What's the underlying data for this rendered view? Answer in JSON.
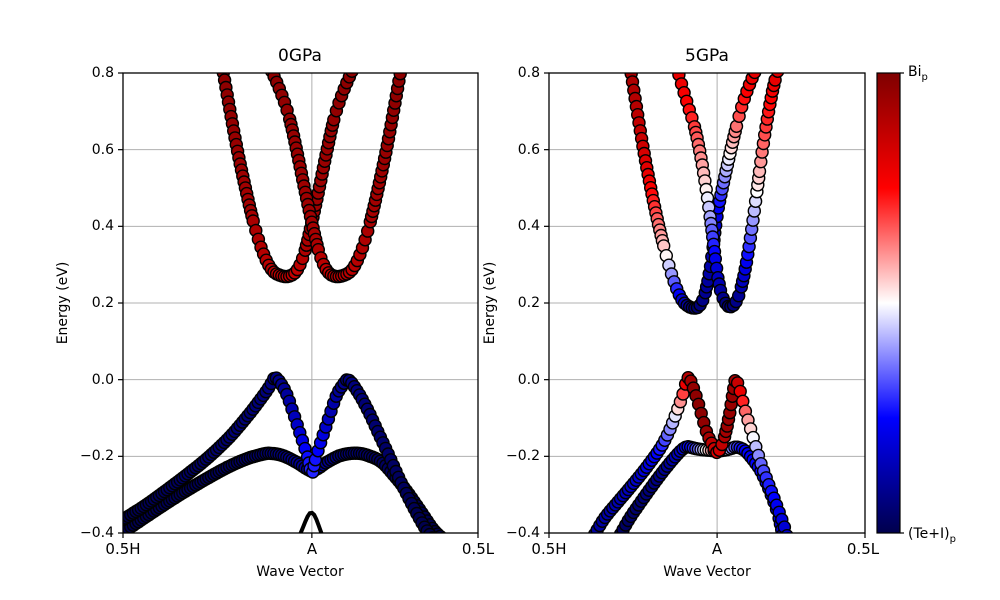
{
  "figure": {
    "background": "#ffffff"
  },
  "chart_data": {
    "type": "scatter",
    "title_left": "0GPa",
    "title_right": "5GPa",
    "colormap": {
      "name": "seismic",
      "range": [
        -1,
        1
      ],
      "stops_bottom_to_top": [
        "#00004d",
        "#0000ff",
        "#ffffff",
        "#ff0000",
        "#7f0000"
      ]
    },
    "grid": {
      "on": true,
      "color": "#b0b0b0"
    },
    "energy_axis": {
      "label": "Energy (eV)",
      "min": -0.4,
      "max": 0.8,
      "ticks": [
        0.8,
        0.6,
        0.4,
        0.2,
        0.0,
        -0.2,
        -0.4
      ],
      "tick_labels": [
        "0.8",
        "0.6",
        "0.4",
        "0.2",
        "0.0",
        "−0.2",
        "−0.4"
      ]
    },
    "k_axis": {
      "label": "Wave Vector",
      "tick_labels": [
        "0.5H",
        "A",
        "0.5L"
      ],
      "A_frac": 0.532
    },
    "colorbar": {
      "label_top_main": "Bi",
      "label_top_sub": "p",
      "label_bottom_main": "(Te+I)",
      "label_bottom_sub": "p"
    },
    "marker": {
      "radius": 6,
      "edge_color": "#000000",
      "edge_width": 1.4
    },
    "panels": [
      {
        "title": "0GPa",
        "bands": [
          {
            "name": "valence-lower",
            "x": [
              0.0,
              0.08,
              0.16,
              0.24,
              0.3,
              0.35,
              0.395,
              0.414,
              0.45,
              0.49,
              0.515,
              0.532,
              0.55,
              0.575,
              0.615,
              0.662,
              0.7,
              0.73,
              0.76,
              0.8,
              0.84,
              0.875,
              0.901
            ],
            "e": [
              -0.398,
              -0.348,
              -0.3,
              -0.256,
              -0.226,
              -0.206,
              -0.194,
              -0.192,
              -0.198,
              -0.216,
              -0.231,
              -0.238,
              -0.231,
              -0.215,
              -0.197,
              -0.192,
              -0.201,
              -0.216,
              -0.246,
              -0.292,
              -0.345,
              -0.392,
              -0.415
            ],
            "c": [
              -1,
              -0.98,
              -0.97,
              -0.96,
              -0.94,
              -0.92,
              -0.9,
              -0.89,
              -0.86,
              -0.8,
              -0.76,
              -0.74,
              -0.76,
              -0.8,
              -0.87,
              -0.9,
              -0.92,
              -0.94,
              -0.95,
              -0.97,
              -0.98,
              -0.99,
              -1
            ]
          },
          {
            "name": "valence-upper",
            "x": [
              0.0,
              0.06,
              0.12,
              0.18,
              0.24,
              0.3,
              0.35,
              0.39,
              0.414,
              0.428,
              0.446,
              0.462,
              0.478,
              0.494,
              0.51,
              0.521,
              0.532,
              0.543,
              0.554,
              0.57,
              0.586,
              0.602,
              0.62,
              0.634,
              0.66,
              0.69,
              0.72,
              0.75,
              0.78,
              0.81,
              0.845,
              0.873
            ],
            "e": [
              -0.365,
              -0.33,
              -0.29,
              -0.248,
              -0.203,
              -0.15,
              -0.096,
              -0.048,
              -0.016,
              0.005,
              -0.012,
              -0.04,
              -0.082,
              -0.127,
              -0.172,
              -0.205,
              -0.245,
              -0.205,
              -0.172,
              -0.127,
              -0.082,
              -0.04,
              -0.013,
              0.0,
              -0.03,
              -0.08,
              -0.14,
              -0.2,
              -0.262,
              -0.318,
              -0.378,
              -0.415
            ],
            "c": [
              -1,
              -0.97,
              -0.95,
              -0.93,
              -0.91,
              -0.89,
              -0.88,
              -0.87,
              -0.86,
              -0.85,
              -0.82,
              -0.78,
              -0.72,
              -0.64,
              -0.54,
              -0.47,
              -0.42,
              -0.47,
              -0.54,
              -0.64,
              -0.72,
              -0.78,
              -0.82,
              -0.85,
              -0.87,
              -0.89,
              -0.91,
              -0.93,
              -0.95,
              -0.97,
              -0.99,
              -1
            ]
          },
          {
            "name": "conduction-left",
            "x": [
              0.279,
              0.3,
              0.322,
              0.345,
              0.368,
              0.393,
              0.418,
              0.443,
              0.468,
              0.49,
              0.511,
              0.532,
              0.553,
              0.574,
              0.596,
              0.624,
              0.653
            ],
            "e": [
              0.82,
              0.71,
              0.6,
              0.5,
              0.41,
              0.335,
              0.288,
              0.272,
              0.27,
              0.285,
              0.33,
              0.41,
              0.5,
              0.595,
              0.685,
              0.76,
              0.82
            ],
            "c": [
              0.95,
              0.93,
              0.9,
              0.87,
              0.84,
              0.8,
              0.76,
              0.73,
              0.72,
              0.74,
              0.8,
              0.87,
              0.88,
              0.9,
              0.92,
              0.94,
              0.95
            ]
          },
          {
            "name": "conduction-right",
            "x": [
              0.411,
              0.44,
              0.468,
              0.49,
              0.511,
              0.532,
              0.553,
              0.574,
              0.596,
              0.621,
              0.646,
              0.671,
              0.696,
              0.719,
              0.742,
              0.764,
              0.785
            ],
            "e": [
              0.82,
              0.76,
              0.685,
              0.595,
              0.5,
              0.41,
              0.33,
              0.285,
              0.27,
              0.272,
              0.288,
              0.335,
              0.41,
              0.5,
              0.6,
              0.71,
              0.82
            ],
            "c": [
              0.95,
              0.94,
              0.92,
              0.9,
              0.88,
              0.87,
              0.8,
              0.74,
              0.72,
              0.73,
              0.76,
              0.8,
              0.84,
              0.87,
              0.9,
              0.93,
              0.95
            ]
          }
        ],
        "black_lines": [
          {
            "name": "deep-valence-arch",
            "x": [
              0.489,
              0.505,
              0.52,
              0.529,
              0.54,
              0.553,
              0.568
            ],
            "e": [
              -0.425,
              -0.39,
              -0.357,
              -0.347,
              -0.355,
              -0.385,
              -0.425
            ]
          }
        ]
      },
      {
        "title": "5GPa",
        "bands": [
          {
            "name": "valence-lower",
            "x": [
              0.218,
              0.255,
              0.288,
              0.32,
              0.351,
              0.38,
              0.405,
              0.422,
              0.437,
              0.455,
              0.472,
              0.49,
              0.505,
              0.518,
              0.532,
              0.546,
              0.56,
              0.575,
              0.59,
              0.605,
              0.62,
              0.635,
              0.65,
              0.668,
              0.688,
              0.71,
              0.726,
              0.74
            ],
            "e": [
              -0.415,
              -0.362,
              -0.322,
              -0.285,
              -0.25,
              -0.22,
              -0.196,
              -0.182,
              -0.175,
              -0.178,
              -0.181,
              -0.183,
              -0.184,
              -0.185,
              -0.186,
              -0.185,
              -0.183,
              -0.18,
              -0.176,
              -0.178,
              -0.185,
              -0.198,
              -0.214,
              -0.235,
              -0.27,
              -0.315,
              -0.355,
              -0.405
            ],
            "c": [
              -0.95,
              -0.93,
              -0.9,
              -0.87,
              -0.83,
              -0.78,
              -0.7,
              -0.62,
              -0.55,
              -0.45,
              -0.3,
              -0.1,
              0.08,
              0.18,
              0.22,
              0.15,
              0.0,
              -0.2,
              -0.35,
              -0.45,
              -0.5,
              -0.52,
              -0.5,
              -0.48,
              -0.5,
              -0.55,
              -0.58,
              -0.62
            ]
          },
          {
            "name": "valence-upper",
            "x": [
              0.136,
              0.175,
              0.215,
              0.255,
              0.295,
              0.33,
              0.36,
              0.385,
              0.405,
              0.423,
              0.44,
              0.455,
              0.47,
              0.485,
              0.5,
              0.516,
              0.532,
              0.548,
              0.562,
              0.576,
              0.589,
              0.604,
              0.618,
              0.632,
              0.645,
              0.658,
              0.672,
              0.69,
              0.71,
              0.728,
              0.745,
              0.756
            ],
            "e": [
              -0.415,
              -0.362,
              -0.322,
              -0.283,
              -0.243,
              -0.205,
              -0.168,
              -0.125,
              -0.082,
              -0.04,
              0.005,
              -0.018,
              -0.055,
              -0.098,
              -0.14,
              -0.168,
              -0.19,
              -0.168,
              -0.128,
              -0.068,
              -0.002,
              -0.028,
              -0.072,
              -0.112,
              -0.148,
              -0.185,
              -0.222,
              -0.262,
              -0.305,
              -0.345,
              -0.385,
              -0.415
            ],
            "c": [
              -0.78,
              -0.75,
              -0.72,
              -0.68,
              -0.62,
              -0.55,
              -0.42,
              -0.22,
              0.02,
              0.35,
              0.78,
              0.92,
              0.95,
              0.95,
              0.9,
              0.75,
              0.62,
              0.75,
              0.88,
              0.92,
              0.85,
              0.6,
              0.35,
              0.15,
              0.0,
              -0.18,
              -0.32,
              -0.42,
              -0.5,
              -0.56,
              -0.62,
              -0.65
            ]
          },
          {
            "name": "conduction-left",
            "x": [
              0.256,
              0.277,
              0.299,
              0.322,
              0.345,
              0.369,
              0.393,
              0.418,
              0.44,
              0.465,
              0.48,
              0.495,
              0.51,
              0.52,
              0.532,
              0.55,
              0.57,
              0.59,
              0.613,
              0.637,
              0.661
            ],
            "e": [
              0.82,
              0.71,
              0.6,
              0.5,
              0.41,
              0.33,
              0.262,
              0.212,
              0.192,
              0.187,
              0.197,
              0.228,
              0.29,
              0.35,
              0.43,
              0.505,
              0.58,
              0.65,
              0.72,
              0.775,
              0.82
            ],
            "c": [
              0.85,
              0.78,
              0.68,
              0.52,
              0.3,
              0.05,
              -0.28,
              -0.6,
              -0.8,
              -0.9,
              -0.86,
              -0.8,
              -0.74,
              -0.68,
              -0.58,
              -0.32,
              -0.02,
              0.25,
              0.45,
              0.56,
              0.62
            ]
          },
          {
            "name": "conduction-right",
            "x": [
              0.403,
              0.42,
              0.44,
              0.462,
              0.482,
              0.497,
              0.51,
              0.52,
              0.528,
              0.538,
              0.55,
              0.562,
              0.573,
              0.586,
              0.6,
              0.614,
              0.628,
              0.643,
              0.658,
              0.673,
              0.69,
              0.708,
              0.722,
              0.733
            ],
            "e": [
              0.82,
              0.77,
              0.715,
              0.655,
              0.575,
              0.5,
              0.425,
              0.36,
              0.305,
              0.25,
              0.215,
              0.196,
              0.19,
              0.196,
              0.218,
              0.26,
              0.32,
              0.4,
              0.49,
              0.585,
              0.675,
              0.755,
              0.8,
              0.82
            ],
            "c": [
              0.62,
              0.56,
              0.5,
              0.38,
              0.22,
              0.05,
              -0.18,
              -0.42,
              -0.58,
              -0.72,
              -0.82,
              -0.88,
              -0.9,
              -0.86,
              -0.8,
              -0.68,
              -0.5,
              -0.25,
              0.0,
              0.25,
              0.42,
              0.55,
              0.62,
              0.65
            ]
          }
        ],
        "black_lines": []
      }
    ]
  }
}
